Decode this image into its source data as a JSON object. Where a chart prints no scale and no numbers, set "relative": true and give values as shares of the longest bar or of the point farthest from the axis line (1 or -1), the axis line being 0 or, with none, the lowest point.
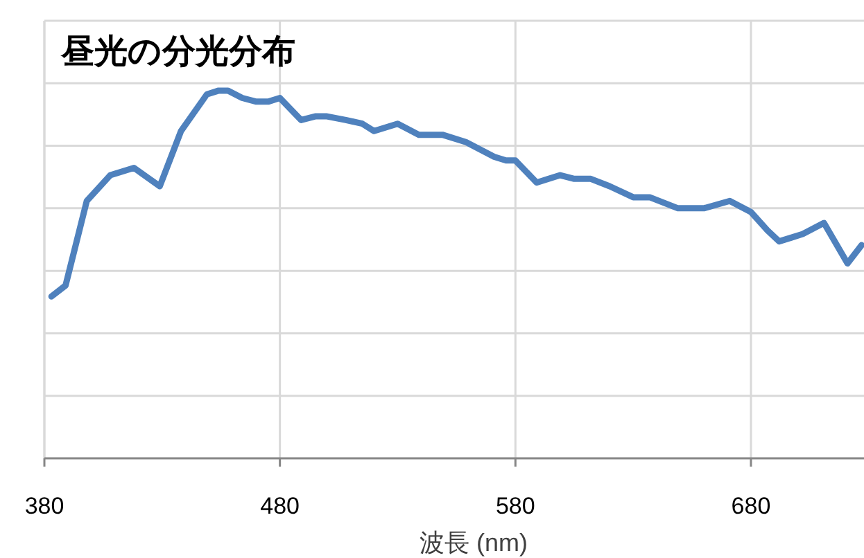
{
  "chart_data": {
    "type": "line",
    "title": "昼光の分光分布",
    "xlabel": "波長 (nm)",
    "relative": true,
    "xlim": [
      380,
      728
    ],
    "xticks": [
      380,
      480,
      580,
      680
    ],
    "grid": true,
    "line_style": "solid",
    "marker": "none",
    "series": [
      {
        "color": "#4f81bd",
        "x": [
          383,
          389,
          398,
          408,
          418,
          429,
          438,
          449,
          454,
          458,
          464,
          470,
          475,
          480,
          489,
          495,
          500,
          508,
          515,
          520,
          530,
          539,
          549,
          559,
          571,
          576,
          580,
          589,
          599,
          605,
          612,
          620,
          630,
          637,
          649,
          660,
          671,
          680,
          687,
          692,
          697,
          702,
          711,
          721,
          727
        ],
        "values": [
          0.44,
          0.47,
          0.7,
          0.77,
          0.79,
          0.74,
          0.89,
          0.99,
          1,
          1,
          0.98,
          0.97,
          0.97,
          0.98,
          0.92,
          0.93,
          0.93,
          0.92,
          0.91,
          0.89,
          0.91,
          0.88,
          0.88,
          0.86,
          0.82,
          0.81,
          0.81,
          0.75,
          0.77,
          0.76,
          0.76,
          0.74,
          0.71,
          0.71,
          0.68,
          0.68,
          0.7,
          0.67,
          0.62,
          0.59,
          0.6,
          0.61,
          0.64,
          0.53,
          0.58
        ]
      }
    ]
  }
}
